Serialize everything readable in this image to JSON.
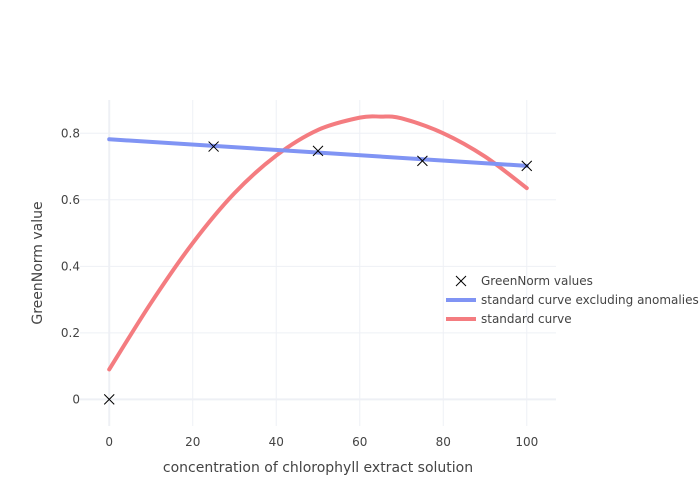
{
  "chart_data": {
    "type": "scatter",
    "title": "",
    "xlabel": "concentration of chlorophyll extract solution",
    "ylabel": "GreenNorm value",
    "xlim": [
      -7,
      107
    ],
    "ylim": [
      -0.08,
      0.9
    ],
    "xticks": [
      0,
      20,
      40,
      60,
      80,
      100
    ],
    "yticks": [
      0,
      0.2,
      0.4,
      0.6,
      0.8
    ],
    "grid": true,
    "legend_position": "right",
    "series": [
      {
        "name": "GreenNorm values",
        "kind": "markers",
        "marker": "x",
        "color": "#000000",
        "x": [
          0,
          25,
          50,
          75,
          100
        ],
        "y": [
          0.0,
          0.76,
          0.747,
          0.717,
          0.702
        ]
      },
      {
        "name": "standard curve excluding anomalies",
        "kind": "line",
        "color": "#8094f4",
        "x": [
          0,
          100
        ],
        "y": [
          0.782,
          0.702
        ]
      },
      {
        "name": "standard curve",
        "kind": "curve",
        "color": "#f47c80",
        "x": [
          0,
          10,
          20,
          30,
          40,
          50,
          60,
          65,
          70,
          80,
          90,
          100
        ],
        "y": [
          0.09,
          0.29,
          0.47,
          0.62,
          0.733,
          0.81,
          0.847,
          0.85,
          0.845,
          0.8,
          0.73,
          0.635
        ]
      }
    ]
  }
}
